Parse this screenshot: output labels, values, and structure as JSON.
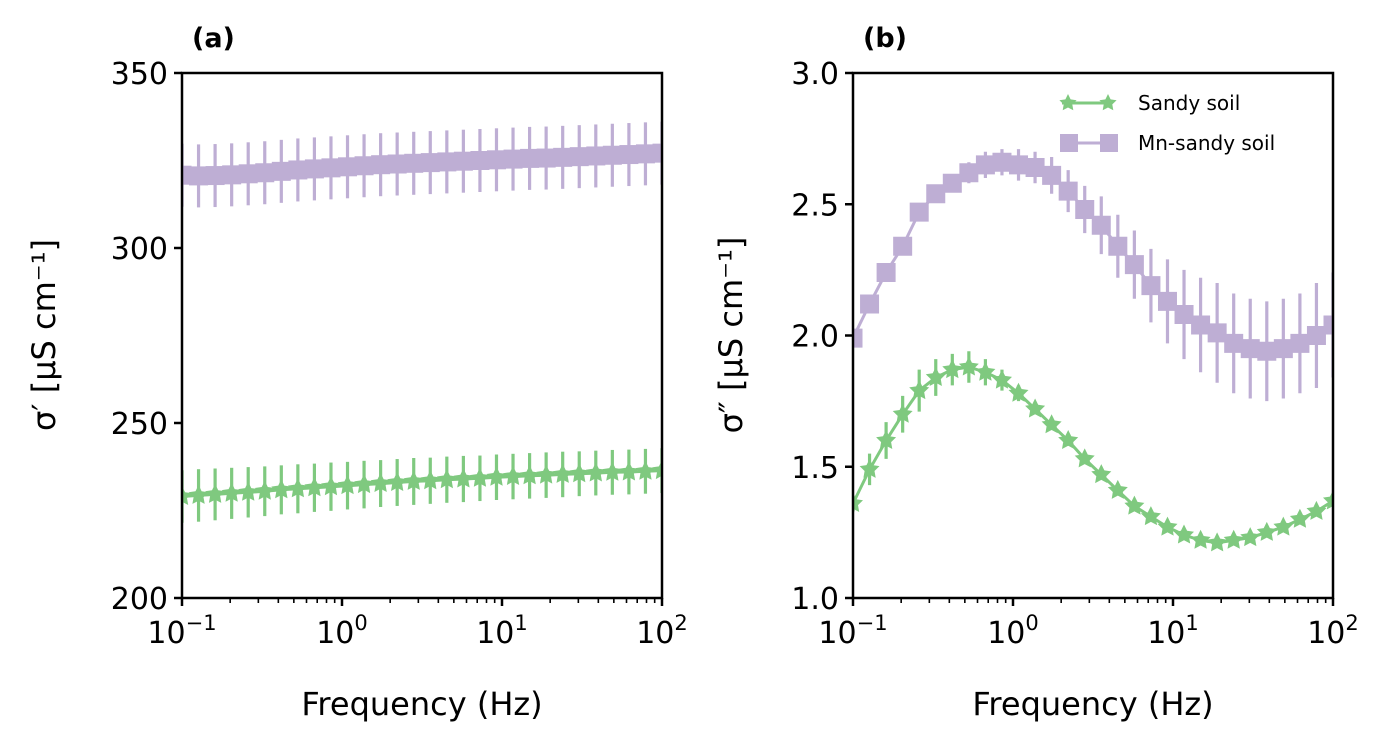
{
  "chart_data": [
    {
      "panel": "(a)",
      "type": "line",
      "title": "(a)",
      "xlabel": "Frequency (Hz)",
      "ylabel": "σ′ [μS cm⁻¹]",
      "xscale": "log",
      "xlim": [
        0.1,
        100
      ],
      "ylim": [
        200,
        350
      ],
      "xticks": [
        {
          "value": 0.1,
          "base": "10",
          "exp": "−1"
        },
        {
          "value": 1,
          "base": "10",
          "exp": "0"
        },
        {
          "value": 10,
          "base": "10",
          "exp": "1"
        },
        {
          "value": 100,
          "base": "10",
          "exp": "2"
        }
      ],
      "yticks": [
        200,
        250,
        300,
        350
      ],
      "ytick_labels": [
        "200",
        "250",
        "300",
        "350"
      ],
      "legend": null,
      "series": [
        {
          "name": "Sandy soil",
          "color": "#7fc97f",
          "marker": "star",
          "values": [
            229.0,
            229.3,
            229.6,
            229.9,
            230.2,
            230.5,
            230.9,
            231.2,
            231.5,
            231.8,
            232.1,
            232.4,
            232.7,
            233.0,
            233.3,
            233.5,
            233.8,
            234.0,
            234.2,
            234.5,
            234.7,
            234.9,
            235.1,
            235.3,
            235.5,
            235.7,
            235.9,
            236.0,
            236.2,
            236.4
          ],
          "errors": [
            7.5,
            7.5,
            7.4,
            7.3,
            7.2,
            7.1,
            7.0,
            7.0,
            6.9,
            6.9,
            6.8,
            6.8,
            6.7,
            6.7,
            6.7,
            6.6,
            6.6,
            6.6,
            6.5,
            6.5,
            6.5,
            6.5,
            6.5,
            6.5,
            6.4,
            6.4,
            6.4,
            6.4,
            6.4,
            6.4
          ]
        },
        {
          "name": "Mn-sandy soil",
          "color": "#beaed4",
          "marker": "square",
          "values": [
            320.8,
            320.6,
            320.7,
            320.9,
            321.2,
            321.5,
            321.9,
            322.3,
            322.6,
            322.9,
            323.2,
            323.5,
            323.8,
            324.0,
            324.2,
            324.4,
            324.6,
            324.8,
            325.0,
            325.2,
            325.4,
            325.6,
            325.7,
            325.9,
            326.1,
            326.3,
            326.5,
            326.7,
            326.9,
            327.1
          ],
          "errors": [
            9.0,
            9.0,
            9.0,
            9.0,
            9.0,
            9.0,
            9.0,
            9.0,
            9.0,
            9.0,
            9.0,
            9.0,
            9.0,
            9.0,
            9.0,
            9.0,
            9.0,
            9.0,
            9.0,
            9.0,
            9.0,
            9.0,
            9.0,
            9.0,
            9.0,
            9.0,
            9.0,
            9.0,
            9.0,
            9.0
          ]
        }
      ]
    },
    {
      "panel": "(b)",
      "type": "line",
      "title": "(b)",
      "xlabel": "Frequency (Hz)",
      "ylabel": "σ″ [μS cm⁻¹]",
      "xscale": "log",
      "xlim": [
        0.1,
        100
      ],
      "ylim": [
        1.0,
        3.0
      ],
      "xticks": [
        {
          "value": 0.1,
          "base": "10",
          "exp": "−1"
        },
        {
          "value": 1,
          "base": "10",
          "exp": "0"
        },
        {
          "value": 10,
          "base": "10",
          "exp": "1"
        },
        {
          "value": 100,
          "base": "10",
          "exp": "2"
        }
      ],
      "yticks": [
        1.0,
        1.5,
        2.0,
        2.5,
        3.0
      ],
      "ytick_labels": [
        "1.0",
        "1.5",
        "2.0",
        "2.5",
        "3.0"
      ],
      "legend": {
        "position": "top-right",
        "entries": [
          "Sandy soil",
          "Mn-sandy soil"
        ]
      },
      "series": [
        {
          "name": "Sandy soil",
          "color": "#7fc97f",
          "marker": "star",
          "values": [
            1.36,
            1.49,
            1.6,
            1.7,
            1.79,
            1.84,
            1.87,
            1.88,
            1.86,
            1.83,
            1.78,
            1.72,
            1.66,
            1.6,
            1.53,
            1.47,
            1.41,
            1.35,
            1.31,
            1.27,
            1.24,
            1.22,
            1.21,
            1.22,
            1.23,
            1.25,
            1.27,
            1.3,
            1.33,
            1.37
          ],
          "errors": [
            0.03,
            0.06,
            0.07,
            0.07,
            0.08,
            0.07,
            0.06,
            0.06,
            0.05,
            0.04,
            0.03,
            0.02,
            0.02,
            0.02,
            0.01,
            0.01,
            0.01,
            0.01,
            0.01,
            0.01,
            0.01,
            0.01,
            0.01,
            0.01,
            0.01,
            0.01,
            0.01,
            0.01,
            0.01,
            0.01
          ]
        },
        {
          "name": "Mn-sandy soil",
          "color": "#beaed4",
          "marker": "square",
          "values": [
            1.99,
            2.12,
            2.24,
            2.34,
            2.47,
            2.54,
            2.58,
            2.62,
            2.65,
            2.66,
            2.65,
            2.64,
            2.61,
            2.55,
            2.48,
            2.42,
            2.34,
            2.27,
            2.19,
            2.13,
            2.08,
            2.04,
            2.01,
            1.97,
            1.95,
            1.94,
            1.95,
            1.97,
            2.0,
            2.04
          ],
          "errors": [
            0.01,
            0.01,
            0.01,
            0.01,
            0.01,
            0.01,
            0.03,
            0.04,
            0.05,
            0.05,
            0.06,
            0.06,
            0.07,
            0.08,
            0.09,
            0.11,
            0.12,
            0.13,
            0.14,
            0.16,
            0.17,
            0.18,
            0.19,
            0.19,
            0.19,
            0.19,
            0.19,
            0.19,
            0.2,
            0.2
          ]
        }
      ]
    }
  ]
}
